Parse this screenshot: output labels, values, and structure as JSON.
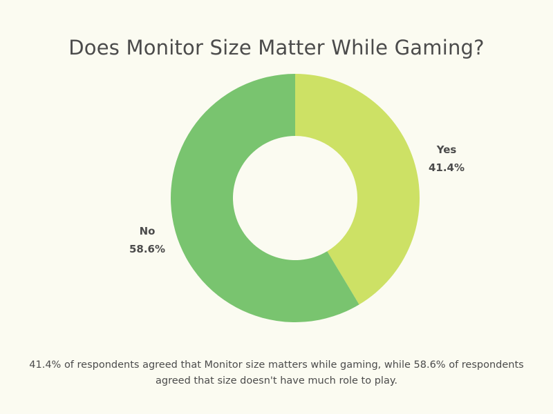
{
  "title": "Does Monitor Size Matter While Gaming?",
  "caption": "41.4% of respondents agreed that Monitor size matters while gaming, while 58.6% of respondents agreed that size doesn't have much role to play.",
  "chart_data": {
    "type": "pie",
    "variant": "donut",
    "title": "Does Monitor Size Matter While Gaming?",
    "slices": [
      {
        "label": "Yes",
        "value": 41.4,
        "display": "41.4%",
        "color": "#cde165"
      },
      {
        "label": "No",
        "value": 58.6,
        "display": "58.6%",
        "color": "#79c46f"
      }
    ],
    "legend": "none"
  }
}
